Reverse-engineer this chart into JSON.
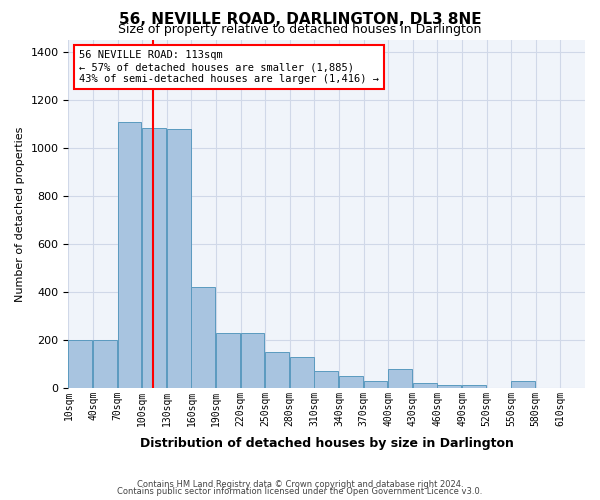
{
  "title": "56, NEVILLE ROAD, DARLINGTON, DL3 8NE",
  "subtitle": "Size of property relative to detached houses in Darlington",
  "xlabel": "Distribution of detached houses by size in Darlington",
  "ylabel": "Number of detached properties",
  "bin_labels": [
    "10sqm",
    "40sqm",
    "70sqm",
    "100sqm",
    "130sqm",
    "160sqm",
    "190sqm",
    "220sqm",
    "250sqm",
    "280sqm",
    "310sqm",
    "340sqm",
    "370sqm",
    "400sqm",
    "430sqm",
    "460sqm",
    "490sqm",
    "520sqm",
    "550sqm",
    "580sqm",
    "610sqm"
  ],
  "bar_values": [
    200,
    200,
    1110,
    1085,
    1080,
    420,
    230,
    230,
    150,
    130,
    70,
    50,
    30,
    80,
    20,
    10,
    10,
    0,
    30,
    0,
    0
  ],
  "bar_color": "#a8c4e0",
  "bar_edge_color": "#5a9abf",
  "red_line_x": 113,
  "annotation_title": "56 NEVILLE ROAD: 113sqm",
  "annotation_line1": "← 57% of detached houses are smaller (1,885)",
  "annotation_line2": "43% of semi-detached houses are larger (1,416) →",
  "ylim": [
    0,
    1450
  ],
  "yticks": [
    0,
    200,
    400,
    600,
    800,
    1000,
    1200,
    1400
  ],
  "footer_line1": "Contains HM Land Registry data © Crown copyright and database right 2024.",
  "footer_line2": "Contains public sector information licensed under the Open Government Licence v3.0.",
  "grid_color": "#d0d8e8",
  "background_color": "#f0f4fa"
}
